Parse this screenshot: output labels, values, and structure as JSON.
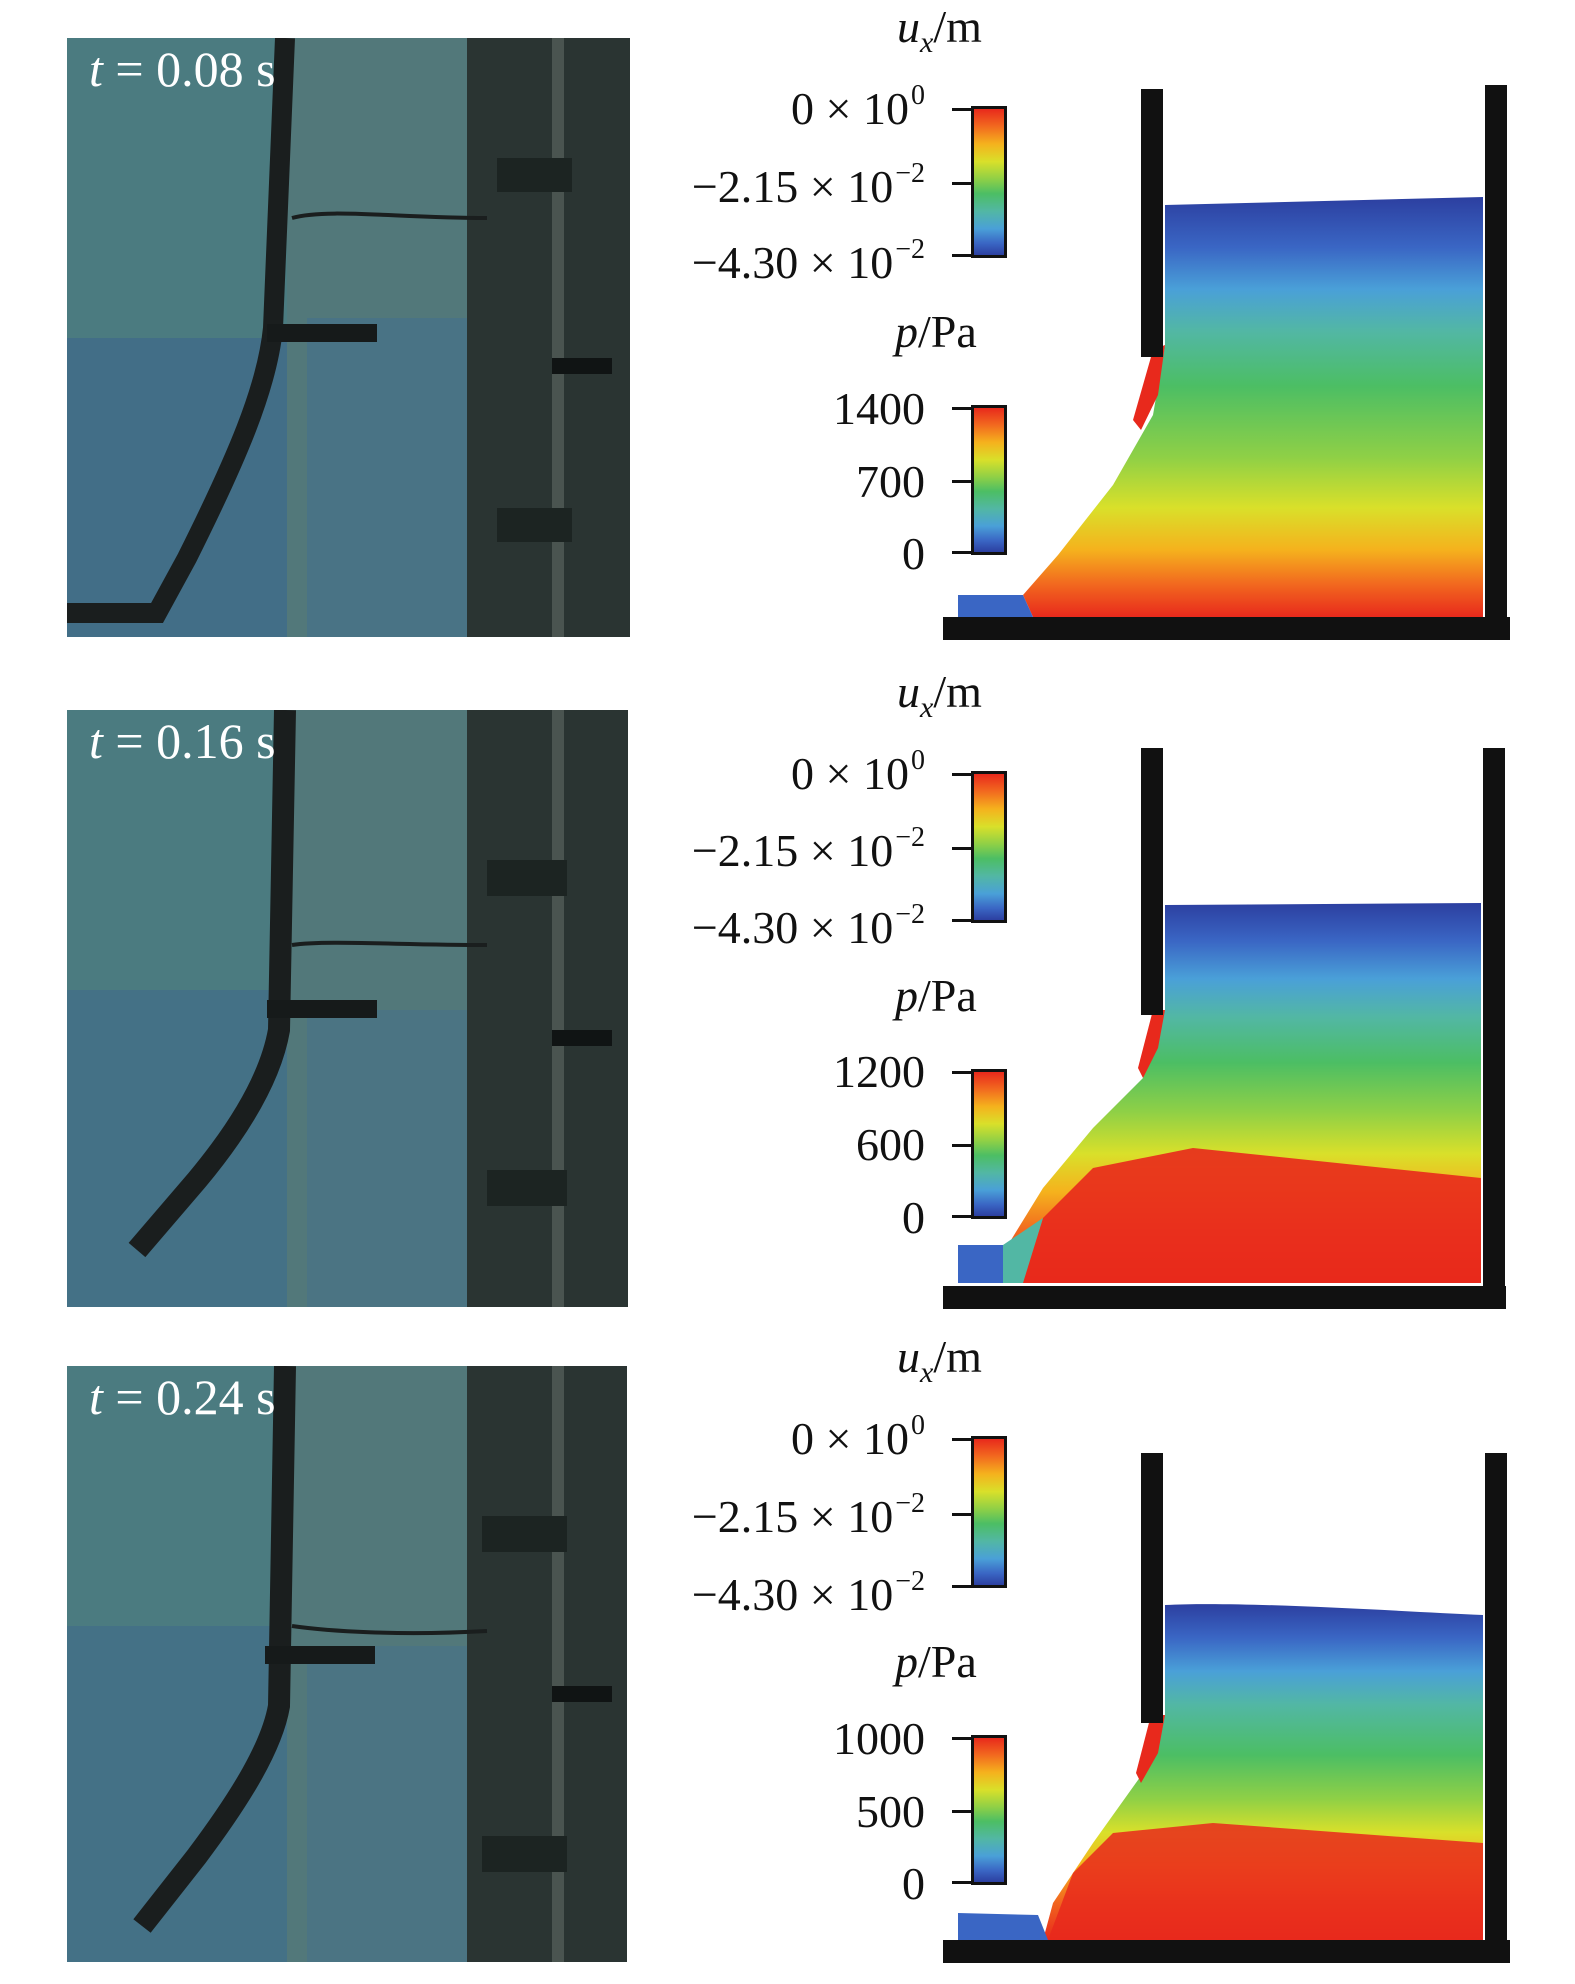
{
  "panels": [
    {
      "time_var": "t",
      "time_text": " = 0.08 s",
      "ux_title": {
        "var": "u",
        "sub": "x",
        "unit": "/m"
      },
      "ux_ticks": [
        {
          "mant": "0 × 10",
          "exp": "0"
        },
        {
          "mant": "−2.15 × 10",
          "exp": "−2"
        },
        {
          "mant": "−4.30 × 10",
          "exp": "−2"
        }
      ],
      "p_title": {
        "var": "p",
        "unit": "/Pa"
      },
      "p_ticks": [
        "1400",
        "700",
        "0"
      ]
    },
    {
      "time_var": "t",
      "time_text": " = 0.16 s",
      "ux_title": {
        "var": "u",
        "sub": "x",
        "unit": "/m"
      },
      "ux_ticks": [
        {
          "mant": "0 × 10",
          "exp": "0"
        },
        {
          "mant": "−2.15 × 10",
          "exp": "−2"
        },
        {
          "mant": "−4.30 × 10",
          "exp": "−2"
        }
      ],
      "p_title": {
        "var": "p",
        "unit": "/Pa"
      },
      "p_ticks": [
        "1200",
        "600",
        "0"
      ]
    },
    {
      "time_var": "t",
      "time_text": " = 0.24 s",
      "ux_title": {
        "var": "u",
        "sub": "x",
        "unit": "/m"
      },
      "ux_ticks": [
        {
          "mant": "0 × 10",
          "exp": "0"
        },
        {
          "mant": "−2.15 × 10",
          "exp": "−2"
        },
        {
          "mant": "−4.30 × 10",
          "exp": "−2"
        }
      ],
      "p_title": {
        "var": "p",
        "unit": "/Pa"
      },
      "p_ticks": [
        "1000",
        "500",
        "0"
      ]
    }
  ],
  "colormap": [
    "#2c3fa0",
    "#3a66c4",
    "#4aa0d8",
    "#52b7a4",
    "#4cbe64",
    "#8fd046",
    "#d9e02a",
    "#f5b21d",
    "#f26a1f",
    "#e8291c"
  ]
}
